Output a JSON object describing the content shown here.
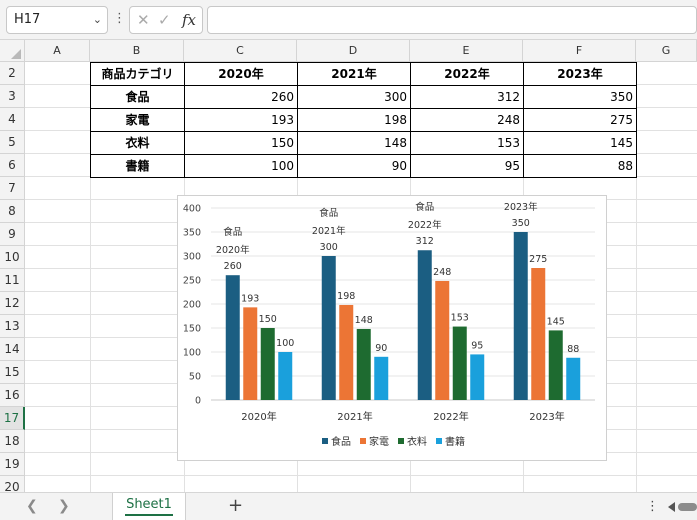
{
  "formula_bar": {
    "name_box": "H17",
    "fx_label": "fx",
    "formula_value": ""
  },
  "columns": [
    "A",
    "B",
    "C",
    "D",
    "E",
    "F",
    "G"
  ],
  "rows": [
    "2",
    "3",
    "4",
    "5",
    "6",
    "7",
    "8",
    "9",
    "10",
    "11",
    "12",
    "13",
    "14",
    "15",
    "16",
    "17",
    "18",
    "19",
    "20"
  ],
  "active_row": "17",
  "table": {
    "header": [
      "商品カテゴリ",
      "2020年",
      "2021年",
      "2022年",
      "2023年"
    ],
    "rows": [
      {
        "category": "食品",
        "values": [
          "260",
          "300",
          "312",
          "350"
        ]
      },
      {
        "category": "家電",
        "values": [
          "193",
          "198",
          "248",
          "275"
        ]
      },
      {
        "category": "衣料",
        "values": [
          "150",
          "148",
          "153",
          "145"
        ]
      },
      {
        "category": "書籍",
        "values": [
          "100",
          "90",
          "95",
          "88"
        ]
      }
    ]
  },
  "chart_data": {
    "type": "bar",
    "categories": [
      "2020年",
      "2021年",
      "2022年",
      "2023年"
    ],
    "series": [
      {
        "name": "食品",
        "values": [
          260,
          300,
          312,
          350
        ],
        "color": "#1b5e82"
      },
      {
        "name": "家電",
        "values": [
          193,
          198,
          248,
          275
        ],
        "color": "#ec7535"
      },
      {
        "name": "衣料",
        "values": [
          150,
          148,
          153,
          145
        ],
        "color": "#1e6b30"
      },
      {
        "name": "書籍",
        "values": [
          100,
          90,
          95,
          88
        ],
        "color": "#1aa0dc"
      }
    ],
    "ylim": [
      0,
      400
    ],
    "yticks": [
      0,
      50,
      100,
      150,
      200,
      250,
      300,
      350,
      400
    ],
    "grid": true,
    "legend": "bottom",
    "annotations": [
      {
        "series": "食品",
        "year": "2020年"
      },
      {
        "series": "食品",
        "year": "2021年"
      },
      {
        "series": "食品",
        "year": "2022年"
      },
      {
        "series": "食品",
        "year": "2023年"
      }
    ]
  },
  "sheet_tabs": {
    "active": "Sheet1",
    "add_label": "+"
  },
  "icons": {
    "name_box_dropdown": "chevron-down-icon",
    "cancel": "cross-icon",
    "confirm": "check-icon",
    "more": "vertical-ellipsis-icon"
  }
}
